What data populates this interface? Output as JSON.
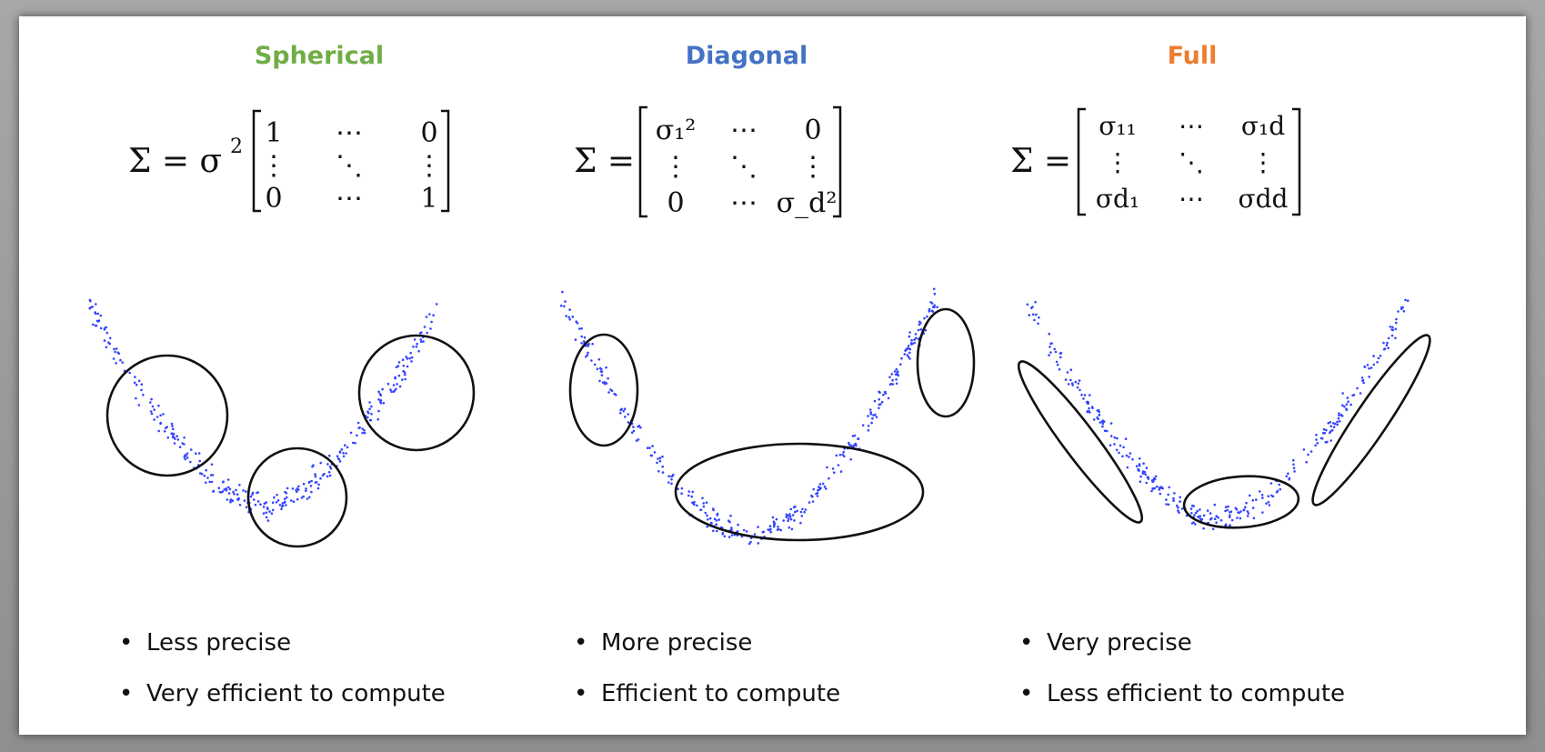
{
  "panels": [
    {
      "title": "Spherical",
      "title_color": "#70ad47",
      "formula": {
        "lhs": "Σ = σ",
        "lhs_sup": "2",
        "cells": [
          "1",
          "⋯",
          "0",
          "⋮",
          "⋱",
          "⋮",
          "0",
          "⋯",
          "1"
        ]
      },
      "bullets": [
        "Less precise",
        "Very efficient to compute"
      ]
    },
    {
      "title": "Diagonal",
      "title_color": "#4472c4",
      "formula": {
        "lhs": "Σ =",
        "cells": [
          "σ₁²",
          "⋯",
          "0",
          "⋮",
          "⋱",
          "⋮",
          "0",
          "⋯",
          "σ_d²"
        ]
      },
      "bullets": [
        "More precise",
        "Efficient to compute"
      ]
    },
    {
      "title": "Full",
      "title_color": "#ed7d31",
      "formula": {
        "lhs": "Σ =",
        "cells": [
          "σ₁₁",
          "⋯",
          "σ₁d",
          "⋮",
          "⋱",
          "⋮",
          "σd₁",
          "⋯",
          "σdd"
        ]
      },
      "bullets": [
        "Very precise",
        "Less efficient to compute"
      ]
    }
  ],
  "colors": {
    "points": "#3344ff",
    "ellipse": "#111111"
  }
}
